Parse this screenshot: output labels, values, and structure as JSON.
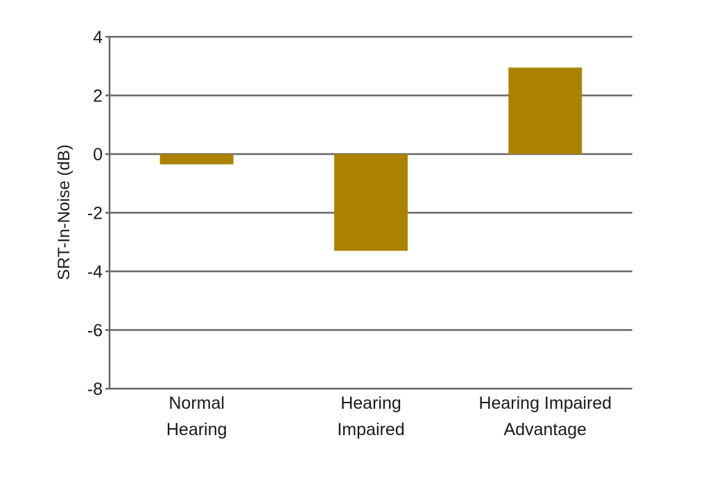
{
  "chart_data": {
    "type": "bar",
    "title": "",
    "xlabel": "",
    "ylabel": "SRT-In-Noise (dB)",
    "categories": [
      [
        "Normal",
        "Hearing"
      ],
      [
        "Hearing",
        "Impaired"
      ],
      [
        "Hearing Impaired",
        "Advantage"
      ]
    ],
    "values": [
      -0.35,
      -3.3,
      2.95
    ],
    "ylim": [
      -8,
      4
    ],
    "yticks": [
      4,
      2,
      0,
      -2,
      -4,
      -6,
      -8
    ],
    "ytick_labels": [
      "4",
      "2",
      "0",
      "-2",
      "-4",
      "-6",
      "-8"
    ],
    "grid": true,
    "legend": "none",
    "bar_color": "#ab8200",
    "grid_color": "#666666"
  }
}
